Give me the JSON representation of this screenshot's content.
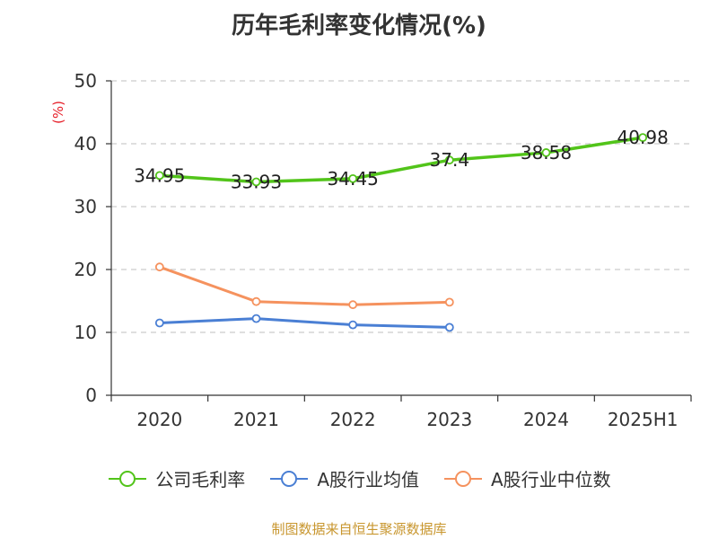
{
  "chart_data": {
    "type": "line",
    "title": "历年毛利率变化情况(%)",
    "ylabel": "(%)",
    "categories": [
      "2020",
      "2021",
      "2022",
      "2023",
      "2024",
      "2025H1"
    ],
    "ylim": [
      0,
      50
    ],
    "yticks": [
      0,
      10,
      20,
      30,
      40,
      50
    ],
    "grid": true,
    "legend_position": "bottom",
    "series": [
      {
        "name": "公司毛利率",
        "color": "#52c41a",
        "values": [
          34.95,
          33.93,
          34.45,
          37.4,
          38.58,
          40.98
        ],
        "labels": [
          "34.95",
          "33.93",
          "34.45",
          "37.4",
          "38.58",
          "40.98"
        ],
        "show_labels": true
      },
      {
        "name": "A股行业均值",
        "color": "#4a7fd4",
        "values": [
          11.5,
          12.2,
          11.2,
          10.8,
          null,
          null
        ],
        "show_labels": false
      },
      {
        "name": "A股行业中位数",
        "color": "#f5925e",
        "values": [
          20.4,
          14.9,
          14.4,
          14.8,
          null,
          null
        ],
        "show_labels": false
      }
    ]
  },
  "colors": {
    "ylabel": "#e6202a",
    "source": "#c8962e",
    "axis": "#333333",
    "grid": "#cccccc"
  },
  "source": "制图数据来自恒生聚源数据库"
}
